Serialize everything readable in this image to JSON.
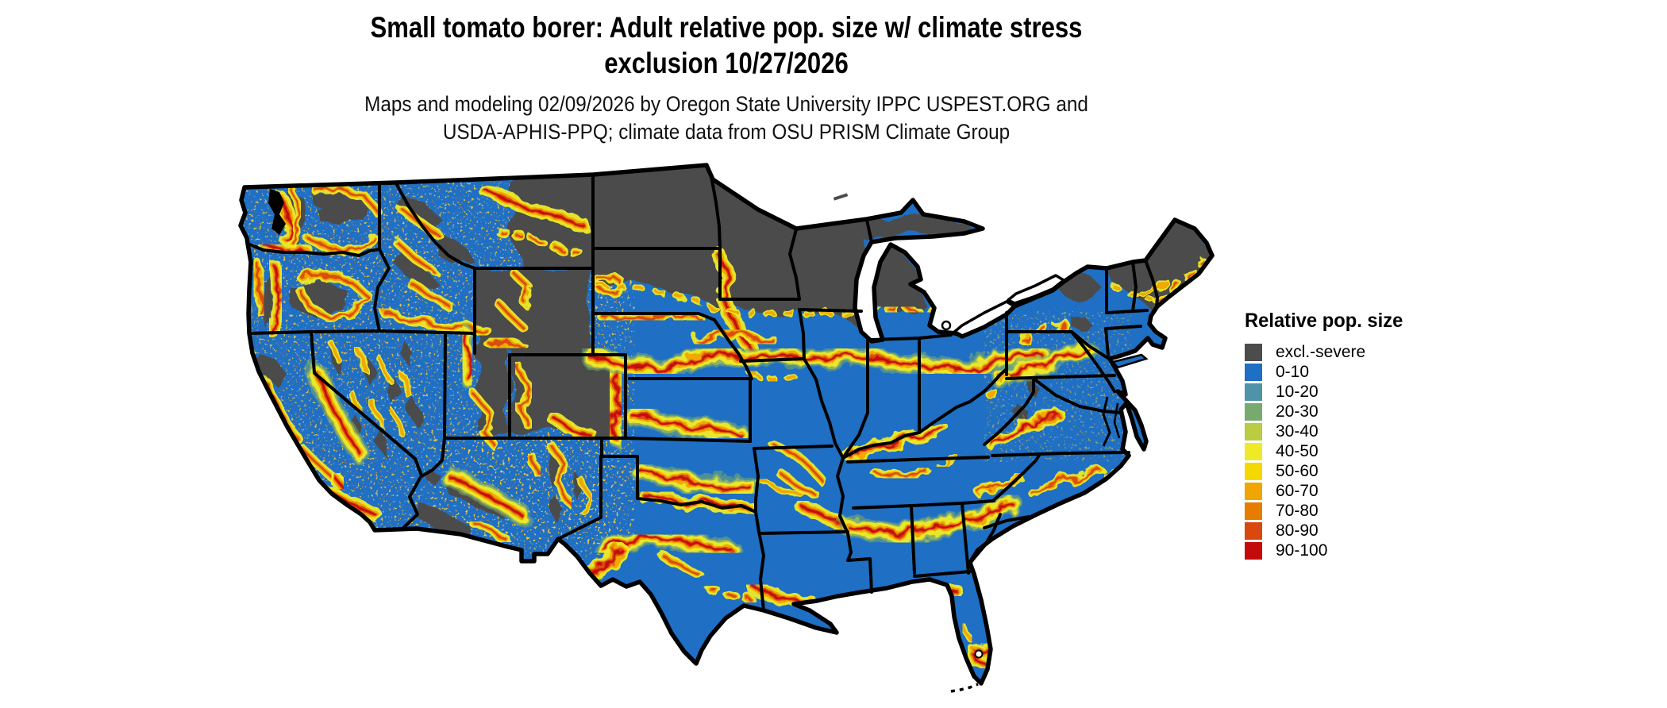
{
  "header": {
    "title_line1": "Small tomato borer: Adult relative pop. size w/ climate stress",
    "title_line2": "exclusion 10/27/2026",
    "subtitle_line1": "Maps and modeling 02/09/2026 by Oregon State University IPPC USPEST.ORG and",
    "subtitle_line2": "USDA-APHIS-PPQ; climate data from OSU PRISM Climate Group"
  },
  "legend": {
    "title": "Relative pop. size",
    "items": [
      {
        "label": "excl.-severe",
        "color": "#4c4c4c"
      },
      {
        "label": "0-10",
        "color": "#1f6fc4"
      },
      {
        "label": "10-20",
        "color": "#4e93a8"
      },
      {
        "label": "20-30",
        "color": "#77ab6e"
      },
      {
        "label": "30-40",
        "color": "#b9cc42"
      },
      {
        "label": "40-50",
        "color": "#eeea28"
      },
      {
        "label": "50-60",
        "color": "#f5d800"
      },
      {
        "label": "60-70",
        "color": "#f0a500"
      },
      {
        "label": "70-80",
        "color": "#e67d00"
      },
      {
        "label": "80-90",
        "color": "#d9480e"
      },
      {
        "label": "90-100",
        "color": "#c40b0b"
      }
    ]
  },
  "map": {
    "region": "Contiguous United States",
    "base_color": "#1f6fc4",
    "excluded_color": "#4c4c4c",
    "water_color": "#ffffff",
    "border_color": "#000000"
  }
}
